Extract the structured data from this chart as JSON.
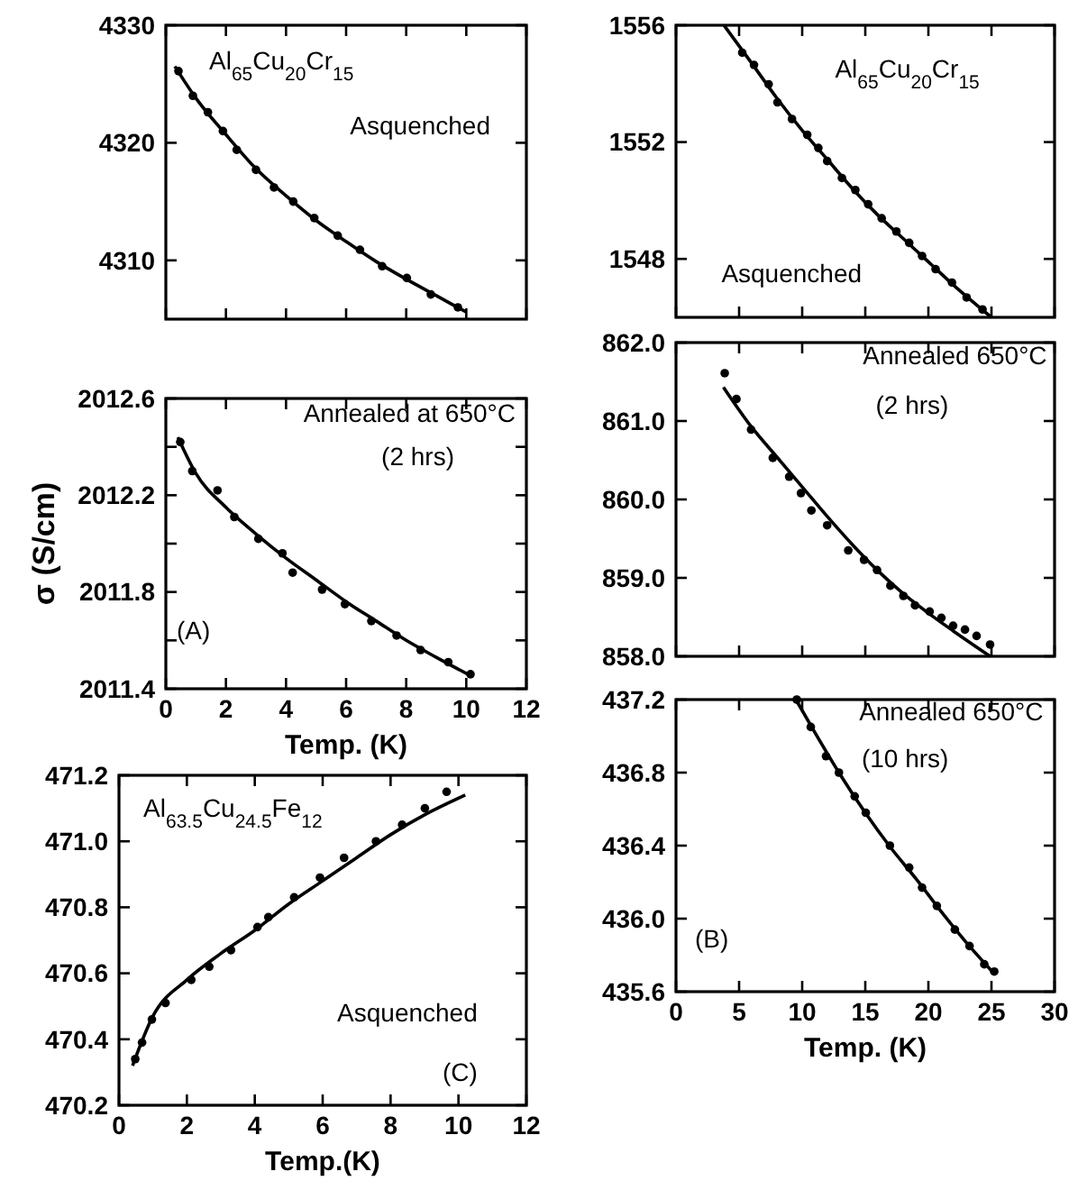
{
  "chart_data": [
    {
      "type": "scatter",
      "tick_labels": "y",
      "xlim": [
        0,
        12
      ],
      "xticks": [
        0,
        2,
        4,
        6,
        8,
        10,
        12
      ],
      "ylim": [
        4305,
        4330
      ],
      "yticks": [
        4310,
        4320,
        4330
      ],
      "annotations": [
        "Al$_{65}$Cu$_{20}$Cr$_{15}$",
        "Asquenched"
      ],
      "series": [
        {
          "marker": "circle",
          "color": "#000000",
          "x": [
            0.42,
            0.9,
            1.4,
            1.9,
            2.36,
            3.0,
            3.6,
            4.24,
            4.94,
            5.72,
            6.46,
            7.2,
            8.02,
            8.82,
            9.72
          ],
          "values": [
            4326.1,
            4324.0,
            4322.6,
            4321.0,
            4319.4,
            4317.7,
            4316.2,
            4315.0,
            4313.6,
            4312.1,
            4310.9,
            4309.5,
            4308.5,
            4307.1,
            4306.0
          ]
        },
        {
          "type": "line",
          "marker": "none",
          "color": "#000000",
          "x": [
            0.3,
            1,
            2,
            3,
            4,
            5,
            6,
            7,
            8,
            9,
            10
          ],
          "values": [
            4326.5,
            4323.8,
            4320.7,
            4317.8,
            4315.5,
            4313.4,
            4311.6,
            4309.9,
            4308.4,
            4307.0,
            4305.6
          ]
        }
      ]
    },
    {
      "type": "scatter",
      "tick_labels": "y",
      "xlim": [
        0,
        30
      ],
      "xticks": [
        0,
        5,
        10,
        15,
        20,
        25,
        30
      ],
      "ylim": [
        1546,
        1556
      ],
      "yticks": [
        1548,
        1552,
        1556
      ],
      "annotations": [
        "Al$_{65}$Cu$_{20}$Cr$_{15}$",
        "Asquenched"
      ],
      "series": [
        {
          "marker": "circle",
          "color": "#000000",
          "x": [
            5.25,
            6.18,
            7.34,
            8.04,
            9.19,
            10.4,
            11.28,
            11.98,
            13.15,
            14.21,
            15.23,
            16.3,
            17.46,
            18.48,
            19.5,
            20.57,
            21.87,
            23.03,
            24.29
          ],
          "values": [
            1555.06,
            1554.64,
            1553.98,
            1553.36,
            1552.79,
            1552.25,
            1551.8,
            1551.35,
            1550.77,
            1550.36,
            1549.87,
            1549.39,
            1548.94,
            1548.55,
            1548.1,
            1547.65,
            1547.19,
            1546.68,
            1546.27
          ]
        },
        {
          "type": "line",
          "marker": "none",
          "color": "#000000",
          "x": [
            3.8,
            6,
            8,
            10,
            12,
            14,
            16,
            18,
            20,
            22,
            25
          ],
          "values": [
            1556.0,
            1554.7,
            1553.5,
            1552.4,
            1551.4,
            1550.4,
            1549.5,
            1548.7,
            1547.9,
            1547.1,
            1546.0
          ]
        }
      ]
    },
    {
      "type": "scatter",
      "xlabel": "Temp. (K)",
      "ylabel": "σ (S/cm)",
      "xlim": [
        0,
        12
      ],
      "xticks": [
        0,
        2,
        4,
        6,
        8,
        10,
        12
      ],
      "ylim": [
        2011.4,
        2012.6
      ],
      "yticks": [
        2011.4,
        {
          "value": 2011.6,
          "label": null
        },
        2011.8,
        {
          "value": 2012.0,
          "label": null
        },
        2012.2,
        {
          "value": 2012.4,
          "label": null
        },
        2012.6
      ],
      "annotations": [
        "Annealed at 650°C",
        "(2 hrs)",
        "(A)"
      ],
      "series": [
        {
          "marker": "circle",
          "color": "#000000",
          "x": [
            0.48,
            0.88,
            1.72,
            2.28,
            3.08,
            3.88,
            4.22,
            5.2,
            5.96,
            6.84,
            7.68,
            8.48,
            9.4,
            10.14
          ],
          "values": [
            2012.42,
            2012.3,
            2012.22,
            2012.11,
            2012.02,
            2011.96,
            2011.88,
            2011.81,
            2011.75,
            2011.68,
            2011.62,
            2011.56,
            2011.51,
            2011.46
          ]
        },
        {
          "type": "line",
          "marker": "none",
          "color": "#000000",
          "x": [
            0.4,
            1,
            2,
            3,
            4,
            5,
            6,
            7,
            8,
            9,
            10.2
          ],
          "values": [
            2012.44,
            2012.29,
            2012.15,
            2012.04,
            2011.94,
            2011.85,
            2011.76,
            2011.68,
            2011.6,
            2011.53,
            2011.45
          ]
        }
      ]
    },
    {
      "type": "scatter",
      "tick_labels": "y",
      "xlim": [
        0,
        30
      ],
      "xticks": [
        0,
        5,
        10,
        15,
        20,
        25,
        30
      ],
      "ylim": [
        858,
        862
      ],
      "yticks": [
        {
          "value": 858,
          "label": "858.0"
        },
        {
          "value": 859,
          "label": "859.0"
        },
        {
          "value": 860,
          "label": "860.0"
        },
        {
          "value": 861,
          "label": "861.0"
        },
        {
          "value": 862,
          "label": "862.0"
        }
      ],
      "annotations": [
        "Annealed 650°C",
        "(2 hrs)"
      ],
      "series": [
        {
          "marker": "circle",
          "color": "#000000",
          "x": [
            3.86,
            4.79,
            5.95,
            7.67,
            8.97,
            9.9,
            10.73,
            11.98,
            13.65,
            14.9,
            15.93,
            16.99,
            18.02,
            18.94,
            20.1,
            21.03,
            21.96,
            22.9,
            23.82,
            24.89
          ],
          "values": [
            861.61,
            861.28,
            860.89,
            860.53,
            860.29,
            860.08,
            859.86,
            859.67,
            859.35,
            859.23,
            859.1,
            858.9,
            858.77,
            858.65,
            858.57,
            858.49,
            858.39,
            858.34,
            858.26,
            858.15
          ]
        },
        {
          "type": "line",
          "marker": "none",
          "color": "#000000",
          "x": [
            3.76,
            6,
            8,
            10,
            12,
            14,
            16,
            18,
            20,
            22,
            24.9
          ],
          "values": [
            861.43,
            860.92,
            860.54,
            860.16,
            859.78,
            859.42,
            859.09,
            858.8,
            858.55,
            858.32,
            858.0
          ]
        }
      ]
    },
    {
      "type": "scatter",
      "xlabel": "Temp.(K)",
      "xlim": [
        0,
        12
      ],
      "xticks": [
        0,
        2,
        4,
        6,
        8,
        10,
        12
      ],
      "ylim": [
        470.2,
        471.2
      ],
      "yticks": [
        470.2,
        470.4,
        470.6,
        470.8,
        {
          "value": 471.0,
          "label": "471.0"
        },
        471.2
      ],
      "annotations": [
        "Al$_{63.5}$Cu$_{24.5}$Fe$_{12}$",
        "Asquenched",
        "(C)"
      ],
      "series": [
        {
          "marker": "circle",
          "color": "#000000",
          "x": [
            0.48,
            0.68,
            0.97,
            1.37,
            2.13,
            2.66,
            3.3,
            4.08,
            4.4,
            5.16,
            5.92,
            6.63,
            7.57,
            8.34,
            9.01,
            9.65
          ],
          "values": [
            470.34,
            470.39,
            470.46,
            470.51,
            470.58,
            470.62,
            470.67,
            470.74,
            470.77,
            470.83,
            470.89,
            470.95,
            471.0,
            471.05,
            471.1,
            471.15
          ]
        },
        {
          "type": "line",
          "marker": "none",
          "color": "#000000",
          "x": [
            0.4,
            1,
            2,
            3,
            4,
            5,
            6,
            7,
            8,
            9,
            10.2
          ],
          "values": [
            470.32,
            470.47,
            470.58,
            470.66,
            470.73,
            470.81,
            470.88,
            470.95,
            471.02,
            471.08,
            471.14
          ]
        }
      ]
    },
    {
      "type": "scatter",
      "xlabel": "Temp. (K)",
      "xlim": [
        0,
        30
      ],
      "xticks": [
        0,
        5,
        10,
        15,
        20,
        25,
        30
      ],
      "ylim": [
        435.6,
        437.2
      ],
      "yticks": [
        435.6,
        {
          "value": 436.0,
          "label": "436.0"
        },
        436.4,
        436.8,
        437.2
      ],
      "annotations": [
        "Annealed 650°C",
        "(10 hrs)",
        "(B)"
      ],
      "series": [
        {
          "marker": "circle",
          "color": "#000000",
          "x": [
            9.57,
            10.68,
            11.89,
            12.91,
            14.16,
            15.04,
            16.95,
            18.48,
            19.5,
            20.67,
            22.1,
            23.26,
            24.43,
            25.22
          ],
          "values": [
            437.2,
            437.05,
            436.89,
            436.8,
            436.67,
            436.58,
            436.4,
            436.28,
            436.17,
            436.07,
            435.94,
            435.85,
            435.75,
            435.71
          ]
        },
        {
          "type": "line",
          "marker": "none",
          "color": "#000000",
          "x": [
            9.5,
            11,
            13,
            15,
            17,
            19,
            21,
            23,
            25.2
          ],
          "values": [
            437.2,
            437.02,
            436.79,
            436.58,
            436.39,
            436.22,
            436.04,
            435.87,
            435.7
          ]
        }
      ]
    }
  ]
}
